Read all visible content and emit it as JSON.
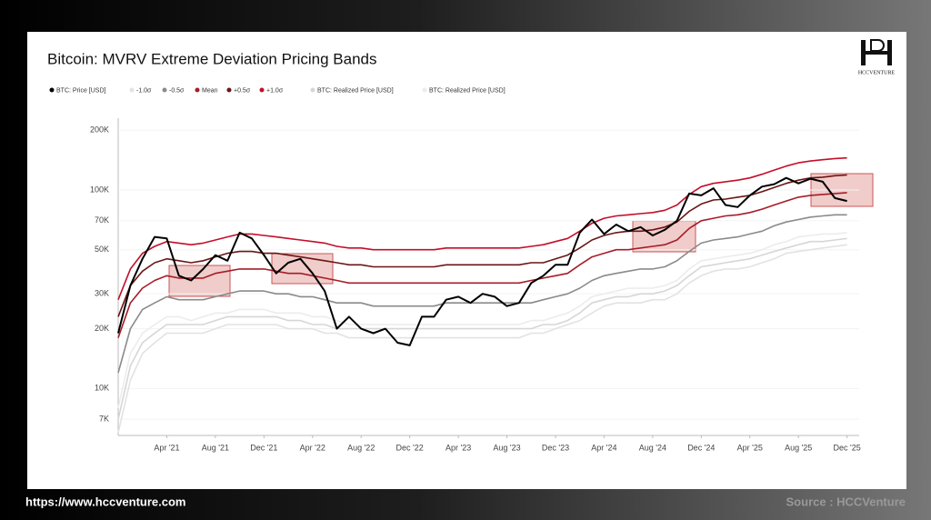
{
  "chart_data": {
    "type": "line",
    "title": "Bitcoin: MVRV Extreme Deviation Pricing Bands",
    "log_scale": true,
    "x": [
      "2020-12",
      "2021-01",
      "2021-02",
      "2021-03",
      "2021-04",
      "2021-05",
      "2021-06",
      "2021-07",
      "2021-08",
      "2021-09",
      "2021-10",
      "2021-11",
      "2021-12",
      "2022-01",
      "2022-02",
      "2022-03",
      "2022-04",
      "2022-05",
      "2022-06",
      "2022-07",
      "2022-08",
      "2022-09",
      "2022-10",
      "2022-11",
      "2022-12",
      "2023-01",
      "2023-02",
      "2023-03",
      "2023-04",
      "2023-05",
      "2023-06",
      "2023-07",
      "2023-08",
      "2023-09",
      "2023-10",
      "2023-11",
      "2023-12",
      "2024-01",
      "2024-02",
      "2024-03",
      "2024-04",
      "2024-05",
      "2024-06",
      "2024-07",
      "2024-08",
      "2024-09",
      "2024-10",
      "2024-11",
      "2024-12",
      "2025-01",
      "2025-02",
      "2025-03",
      "2025-04",
      "2025-05",
      "2025-06",
      "2025-07",
      "2025-08",
      "2025-09",
      "2025-10",
      "2025-11",
      "2025-12"
    ],
    "xlim": [
      "2020-12",
      "2026-01"
    ],
    "xticks": [
      {
        "value": "2021-04",
        "label": "Apr '21"
      },
      {
        "value": "2021-08",
        "label": "Aug '21"
      },
      {
        "value": "2021-12",
        "label": "Dec '21"
      },
      {
        "value": "2022-04",
        "label": "Apr '22"
      },
      {
        "value": "2022-08",
        "label": "Aug '22"
      },
      {
        "value": "2022-12",
        "label": "Dec '22"
      },
      {
        "value": "2023-04",
        "label": "Apr '23"
      },
      {
        "value": "2023-08",
        "label": "Aug '23"
      },
      {
        "value": "2023-12",
        "label": "Dec '23"
      },
      {
        "value": "2024-04",
        "label": "Apr '24"
      },
      {
        "value": "2024-08",
        "label": "Aug '24"
      },
      {
        "value": "2024-12",
        "label": "Dec '24"
      },
      {
        "value": "2025-04",
        "label": "Apr '25"
      },
      {
        "value": "2025-08",
        "label": "Aug '25"
      },
      {
        "value": "2025-12",
        "label": "Dec '25"
      }
    ],
    "ylim": [
      5800,
      230000
    ],
    "yticks": [
      {
        "value": 7000,
        "label": "7K"
      },
      {
        "value": 10000,
        "label": "10K"
      },
      {
        "value": 20000,
        "label": "20K"
      },
      {
        "value": 30000,
        "label": "30K"
      },
      {
        "value": 50000,
        "label": "50K"
      },
      {
        "value": 70000,
        "label": "70K"
      },
      {
        "value": 100000,
        "label": "100K"
      },
      {
        "value": 200000,
        "label": "200K"
      }
    ],
    "series": [
      {
        "name": "BTC: Price [USD]",
        "color": "#000000",
        "values": [
          19000,
          33000,
          45000,
          58000,
          57000,
          37000,
          35000,
          40000,
          47000,
          44000,
          61000,
          57000,
          47000,
          38000,
          43000,
          45000,
          38000,
          31000,
          20000,
          23000,
          20000,
          19000,
          20000,
          17000,
          16500,
          23000,
          23000,
          28000,
          29000,
          27000,
          30000,
          29000,
          26000,
          27000,
          34000,
          37000,
          42000,
          42000,
          61000,
          71000,
          60000,
          67000,
          62000,
          65000,
          59000,
          63000,
          70000,
          96000,
          94000,
          102000,
          84000,
          82000,
          94000,
          104000,
          107000,
          115000,
          108000,
          114000,
          110000,
          91000,
          88000
        ]
      },
      {
        "name": "-1.0σ",
        "color": "#e2e2e2",
        "values": [
          6000,
          11000,
          15000,
          17000,
          19000,
          19000,
          19000,
          19000,
          20000,
          21000,
          21000,
          21000,
          21000,
          21000,
          20000,
          20000,
          20000,
          19000,
          19000,
          18000,
          18000,
          18000,
          18000,
          18000,
          18000,
          18000,
          18000,
          18000,
          18000,
          18000,
          18000,
          18000,
          18000,
          18000,
          19000,
          19000,
          20000,
          21000,
          22000,
          24000,
          26000,
          27000,
          27000,
          27000,
          28000,
          28000,
          30000,
          34000,
          37000,
          39000,
          40000,
          40000,
          41000,
          43000,
          45000,
          48000,
          49000,
          50000,
          51000,
          52000,
          53000
        ]
      },
      {
        "name": "-0.5σ",
        "color": "#8a8a8a",
        "values": [
          12000,
          20000,
          25000,
          27000,
          29000,
          28000,
          28000,
          28000,
          29000,
          30000,
          31000,
          31000,
          31000,
          30000,
          30000,
          29000,
          29000,
          28000,
          27000,
          27000,
          27000,
          26000,
          26000,
          26000,
          26000,
          26000,
          26000,
          27000,
          27000,
          27000,
          27000,
          27000,
          27000,
          27000,
          27000,
          28000,
          29000,
          30000,
          32000,
          35000,
          37000,
          38000,
          39000,
          40000,
          40000,
          41000,
          44000,
          49000,
          54000,
          56000,
          57000,
          58000,
          60000,
          62000,
          66000,
          69000,
          71000,
          73000,
          74000,
          75000,
          75000
        ]
      },
      {
        "name": "Mean",
        "color": "#a61c28",
        "values": [
          18000,
          27000,
          32000,
          35000,
          37000,
          36000,
          36000,
          36000,
          38000,
          39000,
          40000,
          40000,
          40000,
          39000,
          38000,
          38000,
          37000,
          36000,
          35000,
          34000,
          34000,
          34000,
          34000,
          34000,
          34000,
          34000,
          34000,
          34000,
          34000,
          34000,
          34000,
          34000,
          34000,
          34000,
          35000,
          36000,
          37000,
          38000,
          42000,
          46000,
          48000,
          50000,
          50000,
          51000,
          52000,
          53000,
          56000,
          64000,
          70000,
          72000,
          74000,
          75000,
          77000,
          80000,
          84000,
          88000,
          92000,
          94000,
          95000,
          96000,
          97000
        ]
      },
      {
        "name": "+0.5σ",
        "color": "#6b1515",
        "values": [
          23000,
          33000,
          39000,
          43000,
          45000,
          44000,
          43000,
          44000,
          46000,
          48000,
          49000,
          49000,
          48000,
          48000,
          47000,
          46000,
          45000,
          44000,
          43000,
          42000,
          42000,
          41000,
          41000,
          41000,
          41000,
          41000,
          41000,
          42000,
          42000,
          42000,
          42000,
          42000,
          42000,
          42000,
          43000,
          43000,
          45000,
          47000,
          51000,
          56000,
          59000,
          61000,
          62000,
          62000,
          63000,
          65000,
          69000,
          78000,
          85000,
          89000,
          90000,
          92000,
          94000,
          98000,
          103000,
          108000,
          112000,
          115000,
          116000,
          118000,
          119000
        ]
      },
      {
        "name": "+1.0σ",
        "color": "#c40e2a",
        "values": [
          28000,
          40000,
          48000,
          52000,
          55000,
          54000,
          53000,
          54000,
          56000,
          58000,
          60000,
          60000,
          59000,
          58000,
          57000,
          56000,
          55000,
          54000,
          52000,
          51000,
          51000,
          50000,
          50000,
          50000,
          50000,
          50000,
          50000,
          51000,
          51000,
          51000,
          51000,
          51000,
          51000,
          51000,
          52000,
          53000,
          55000,
          57000,
          62000,
          68000,
          72000,
          74000,
          75000,
          76000,
          77000,
          79000,
          84000,
          95000,
          104000,
          108000,
          110000,
          112000,
          115000,
          120000,
          126000,
          132000,
          137000,
          140000,
          142000,
          144000,
          145000
        ]
      },
      {
        "name": "BTC: Realized Price [USD]",
        "color": "#d6d6d6",
        "values": [
          7000,
          13000,
          17000,
          19000,
          21000,
          21000,
          21000,
          21000,
          22000,
          23000,
          23000,
          23000,
          23000,
          23000,
          22000,
          22000,
          21000,
          21000,
          20000,
          20000,
          20000,
          20000,
          20000,
          20000,
          20000,
          20000,
          20000,
          20000,
          20000,
          20000,
          20000,
          20000,
          20000,
          20000,
          20000,
          21000,
          21000,
          22000,
          24000,
          27000,
          28000,
          29000,
          29000,
          30000,
          30000,
          31000,
          33000,
          37000,
          41000,
          42000,
          43000,
          44000,
          45000,
          47000,
          49000,
          51000,
          53000,
          55000,
          55000,
          56000,
          57000
        ]
      },
      {
        "name": "BTC: Realized Price [USD]",
        "color": "#ececec",
        "values": [
          8000,
          15000,
          19000,
          21000,
          23000,
          23000,
          22000,
          23000,
          24000,
          24000,
          25000,
          25000,
          25000,
          24000,
          24000,
          24000,
          23000,
          23000,
          22000,
          21000,
          21000,
          21000,
          21000,
          21000,
          21000,
          21000,
          21000,
          21000,
          21000,
          21000,
          21000,
          21000,
          21000,
          21000,
          22000,
          22000,
          23000,
          24000,
          26000,
          29000,
          30000,
          31000,
          32000,
          32000,
          32000,
          33000,
          35000,
          40000,
          44000,
          45000,
          46000,
          47000,
          48000,
          50000,
          53000,
          55000,
          58000,
          59000,
          60000,
          60000,
          61000
        ]
      }
    ]
  },
  "logo": "HCCVENTURE",
  "footer": {
    "url": "https://www.hccventure.com",
    "source": "Source : HCCVenture"
  }
}
